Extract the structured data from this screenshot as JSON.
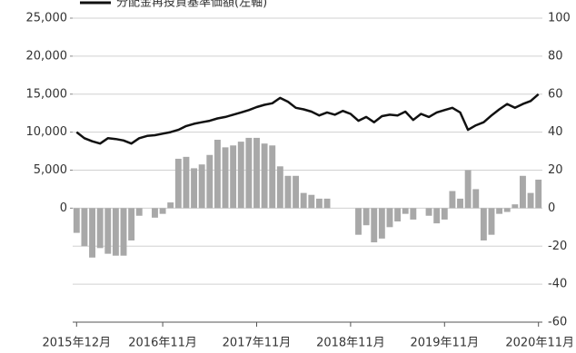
{
  "chart_data": {
    "type": "bar-line",
    "legend": "top-left",
    "grid": true,
    "categories": [
      "2015年12月",
      null,
      null,
      null,
      null,
      null,
      null,
      null,
      null,
      null,
      null,
      "2016年11月",
      null,
      null,
      null,
      null,
      null,
      null,
      null,
      null,
      null,
      null,
      null,
      "2017年11月",
      null,
      null,
      null,
      null,
      null,
      null,
      null,
      null,
      null,
      null,
      null,
      "2018年11月",
      null,
      null,
      null,
      null,
      null,
      null,
      null,
      null,
      null,
      null,
      null,
      "2019年11月",
      null,
      null,
      null,
      null,
      null,
      null,
      null,
      null,
      null,
      null,
      null,
      "2020年11月"
    ],
    "ylim": [
      -15000,
      25000
    ],
    "yticks": [
      {
        "value": 0,
        "label": "0"
      },
      {
        "value": 5000,
        "label": "5,000"
      },
      {
        "value": 10000,
        "label": "10,000"
      },
      {
        "value": 15000,
        "label": "15,000"
      },
      {
        "value": 20000,
        "label": "20,000"
      },
      {
        "value": 25000,
        "label": "25,000"
      }
    ],
    "y2lim": [
      -60,
      100
    ],
    "y2ticks": [
      -60,
      -40,
      -20,
      0,
      20,
      40,
      60,
      80,
      100
    ],
    "series": [
      {
        "kind": "bar",
        "axis": "y2",
        "color": "#a8a8a8",
        "values": [
          -13,
          -20,
          -26,
          -21,
          -24,
          -25,
          -25,
          -17,
          -4,
          0,
          -5,
          -3,
          3,
          26,
          27,
          21,
          23,
          28,
          36,
          32,
          33,
          35,
          37,
          37,
          34,
          33,
          22,
          17,
          17,
          8,
          7,
          5,
          5,
          0,
          0,
          0,
          -14,
          -9,
          -18,
          -16,
          -10,
          -7,
          -3,
          -6,
          0,
          -4,
          -8,
          -6,
          9,
          5,
          20,
          10,
          -17,
          -14,
          -3,
          -2,
          2,
          17,
          8,
          15
        ]
      },
      {
        "kind": "line",
        "name": "分配金再投資基準価額(左軸)",
        "color": "#111111",
        "values": [
          10000,
          9200,
          8800,
          8500,
          9200,
          9100,
          8900,
          8500,
          9200,
          9500,
          9600,
          9800,
          10000,
          10300,
          10800,
          11100,
          11300,
          11500,
          11800,
          12000,
          12300,
          12600,
          12900,
          13300,
          13600,
          13800,
          14500,
          14000,
          13200,
          13000,
          12700,
          12200,
          12600,
          12300,
          12800,
          12400,
          11500,
          12000,
          11300,
          12100,
          12300,
          12200,
          12700,
          11600,
          12400,
          12000,
          12600,
          12900,
          13200,
          12600,
          10300,
          10900,
          11300,
          12200,
          13000,
          13700,
          13200,
          13700,
          14100,
          15000
        ]
      }
    ]
  }
}
